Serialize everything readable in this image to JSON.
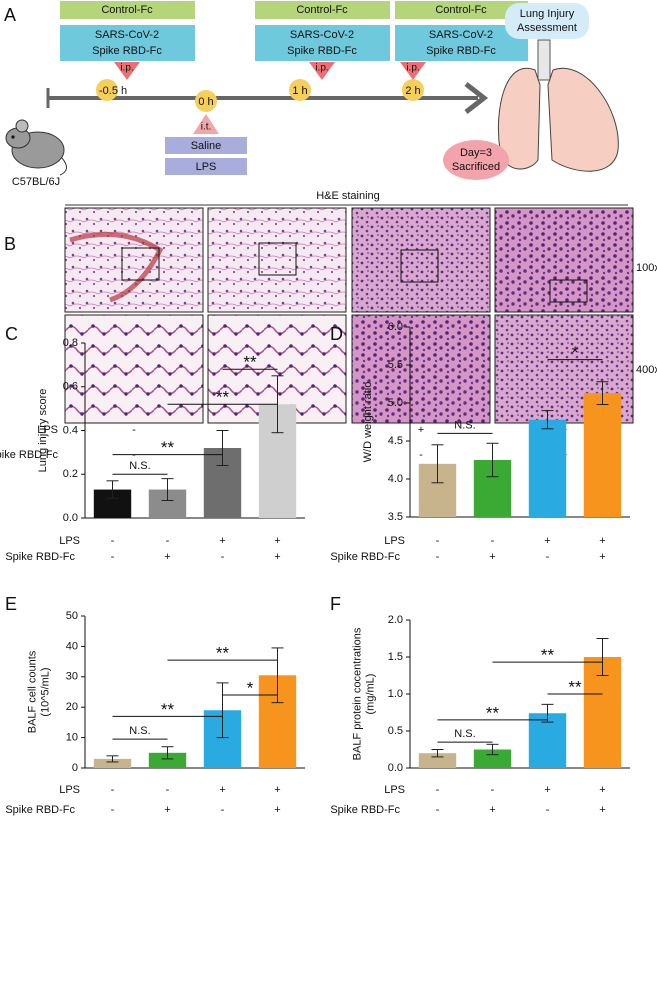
{
  "panel_a": {
    "label": "A",
    "doses": [
      {
        "control": "Control-Fc",
        "treatment": [
          "SARS-CoV-2",
          "Spike RBD-Fc"
        ],
        "route": "i.p.",
        "time": "-0.5 h"
      },
      {
        "control": "Control-Fc",
        "treatment": [
          "SARS-CoV-2",
          "Spike RBD-Fc"
        ],
        "route": "i.p.",
        "time": "1 h"
      },
      {
        "control": "Control-Fc",
        "treatment": [
          "SARS-CoV-2",
          "Spike RBD-Fc"
        ],
        "route": "i.p.",
        "time": "2 h"
      }
    ],
    "challenge": {
      "time": "0 h",
      "route": "i.t.",
      "groups": [
        "Saline",
        "LPS"
      ]
    },
    "mouse": "C57BL/6J",
    "assessment": [
      "Lung Injury",
      "Assessment"
    ],
    "endpoint": [
      "Day=3",
      "Sacrificed"
    ]
  },
  "panel_b": {
    "label": "B",
    "title": "H&E staining",
    "magnifications": [
      "100x",
      "400x"
    ],
    "rows": [
      {
        "name": "LPS",
        "values": [
          "-",
          "-",
          "+",
          "+"
        ]
      },
      {
        "name": "Spike RBD-Fc",
        "values": [
          "-",
          "+",
          "-",
          "+"
        ]
      }
    ]
  },
  "chart_data": [
    {
      "type": "bar",
      "panel": "C",
      "ylabel": [
        "Lung injury score"
      ],
      "values": [
        0.13,
        0.13,
        0.32,
        0.52
      ],
      "errors": [
        0.04,
        0.05,
        0.08,
        0.13
      ],
      "colors": [
        "#111111",
        "#8c8c8c",
        "#6e6e6e",
        "#cfcfcf"
      ],
      "ylim": [
        0,
        0.8
      ],
      "yticks": [
        {
          "value": 0,
          "label": "0.0"
        },
        0.2,
        0.4,
        0.6,
        0.8
      ],
      "rows": [
        {
          "name": "LPS",
          "values": [
            "-",
            "-",
            "+",
            "+"
          ]
        },
        {
          "name": "Spike RBD-Fc",
          "values": [
            "-",
            "+",
            "-",
            "+"
          ]
        }
      ],
      "annotations": [
        {
          "text": "N.S.",
          "from": 0,
          "to": 1,
          "y": 0.2
        },
        {
          "text": "**",
          "from": 0,
          "to": 2,
          "y": 0.29
        },
        {
          "text": "**",
          "from": 1,
          "to": 3,
          "y": 0.52
        },
        {
          "text": "**",
          "from": 2,
          "to": 3,
          "y": 0.68
        }
      ]
    },
    {
      "type": "bar",
      "panel": "D",
      "ylabel": [
        "W/D weight ratio"
      ],
      "values": [
        4.2,
        4.25,
        4.78,
        5.13
      ],
      "errors": [
        0.25,
        0.22,
        0.12,
        0.15
      ],
      "colors": [
        "#c8b48c",
        "#3aaa35",
        "#29abe2",
        "#f7941d"
      ],
      "ylim": [
        3.5,
        6
      ],
      "yticks": [
        3.5,
        {
          "value": 4,
          "label": "4.0"
        },
        4.5,
        {
          "value": 5,
          "label": "5.0"
        },
        5.5,
        {
          "value": 6,
          "label": "6.0"
        }
      ],
      "rows": [
        {
          "name": "LPS",
          "values": [
            "-",
            "-",
            "+",
            "+"
          ]
        },
        {
          "name": "Spike RBD-Fc",
          "values": [
            "-",
            "+",
            "-",
            "+"
          ]
        }
      ],
      "annotations": [
        {
          "text": "N.S.",
          "from": 0,
          "to": 1,
          "y": 4.6
        },
        {
          "text": "*",
          "from": 2,
          "to": 3,
          "y": 5.57
        }
      ]
    },
    {
      "type": "bar",
      "panel": "E",
      "ylabel": [
        "BALF cell counts",
        "(10^5/mL)"
      ],
      "values": [
        3,
        5,
        19,
        30.5
      ],
      "errors": [
        1,
        2,
        9,
        9
      ],
      "colors": [
        "#c8b48c",
        "#3aaa35",
        "#29abe2",
        "#f7941d"
      ],
      "ylim": [
        0,
        50
      ],
      "yticks": [
        0,
        10,
        20,
        30,
        40,
        50
      ],
      "rows": [
        {
          "name": "LPS",
          "values": [
            "-",
            "-",
            "+",
            "+"
          ]
        },
        {
          "name": "Spike RBD-Fc",
          "values": [
            "-",
            "+",
            "-",
            "+"
          ]
        }
      ],
      "annotations": [
        {
          "text": "N.S.",
          "from": 0,
          "to": 1,
          "y": 9.5
        },
        {
          "text": "**",
          "from": 0,
          "to": 2,
          "y": 17
        },
        {
          "text": "*",
          "from": 2,
          "to": 3,
          "y": 24
        },
        {
          "text": "**",
          "from": 1,
          "to": 3,
          "y": 35.5
        }
      ]
    },
    {
      "type": "bar",
      "panel": "F",
      "ylabel": [
        "BALF protein cocentrations",
        "(mg/mL)"
      ],
      "values": [
        0.2,
        0.25,
        0.74,
        1.5
      ],
      "errors": [
        0.05,
        0.07,
        0.12,
        0.25
      ],
      "colors": [
        "#c8b48c",
        "#3aaa35",
        "#29abe2",
        "#f7941d"
      ],
      "ylim": [
        0,
        2
      ],
      "yticks": [
        {
          "value": 0,
          "label": "0.0"
        },
        0.5,
        {
          "value": 1,
          "label": "1.0"
        },
        1.5,
        {
          "value": 2,
          "label": "2.0"
        }
      ],
      "rows": [
        {
          "name": "LPS",
          "values": [
            "-",
            "-",
            "+",
            "+"
          ]
        },
        {
          "name": "Spike RBD-Fc",
          "values": [
            "-",
            "+",
            "-",
            "+"
          ]
        }
      ],
      "annotations": [
        {
          "text": "N.S.",
          "from": 0,
          "to": 1,
          "y": 0.35
        },
        {
          "text": "**",
          "from": 0,
          "to": 2,
          "y": 0.65
        },
        {
          "text": "**",
          "from": 2,
          "to": 3,
          "y": 1
        },
        {
          "text": "**",
          "from": 1,
          "to": 3,
          "y": 1.43
        }
      ]
    }
  ]
}
